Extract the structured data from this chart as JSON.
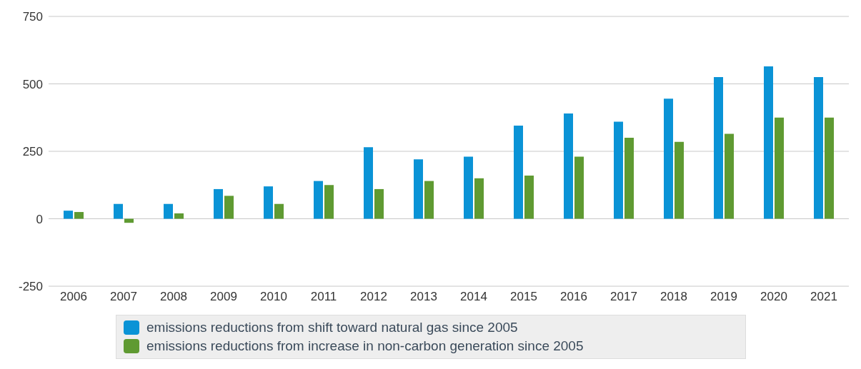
{
  "chart_data": {
    "type": "bar",
    "categories": [
      "2006",
      "2007",
      "2008",
      "2009",
      "2010",
      "2011",
      "2012",
      "2013",
      "2014",
      "2015",
      "2016",
      "2017",
      "2018",
      "2019",
      "2020",
      "2021"
    ],
    "series": [
      {
        "name": "emissions reductions from shift toward natural gas since 2005",
        "color": "#0a93d6",
        "values": [
          30,
          55,
          55,
          110,
          120,
          140,
          265,
          220,
          230,
          345,
          390,
          360,
          445,
          525,
          565,
          525
        ]
      },
      {
        "name": "emissions reductions from increase in non-carbon generation since 2005",
        "color": "#5f9a32",
        "values": [
          25,
          -15,
          20,
          85,
          55,
          125,
          110,
          140,
          150,
          160,
          230,
          300,
          285,
          315,
          375,
          375
        ]
      }
    ],
    "ylim": [
      -250,
      750
    ],
    "yticks": [
      -250,
      0,
      250,
      500,
      750
    ],
    "grid": "y",
    "legend": "bottom"
  }
}
